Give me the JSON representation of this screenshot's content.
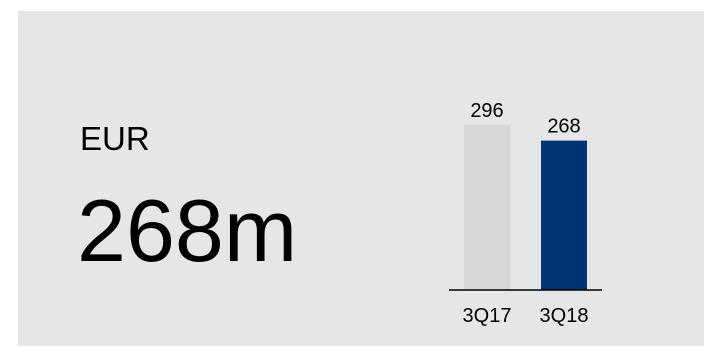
{
  "header": {
    "currency": "EUR",
    "value": "268m"
  },
  "colors": {
    "panel_bg": "#e5e6e8",
    "prior_bar": "#d6d7d9",
    "current_bar": "#003371",
    "baseline": "#000000"
  },
  "chart_data": {
    "type": "bar",
    "categories": [
      "3Q17",
      "3Q18"
    ],
    "values": [
      296,
      268
    ],
    "data_labels": [
      "296",
      "268"
    ],
    "title": "",
    "xlabel": "",
    "ylabel": "",
    "ylim": [
      0,
      296
    ],
    "grid": false,
    "bar_colors": [
      "#d6d7d9",
      "#003371"
    ]
  }
}
